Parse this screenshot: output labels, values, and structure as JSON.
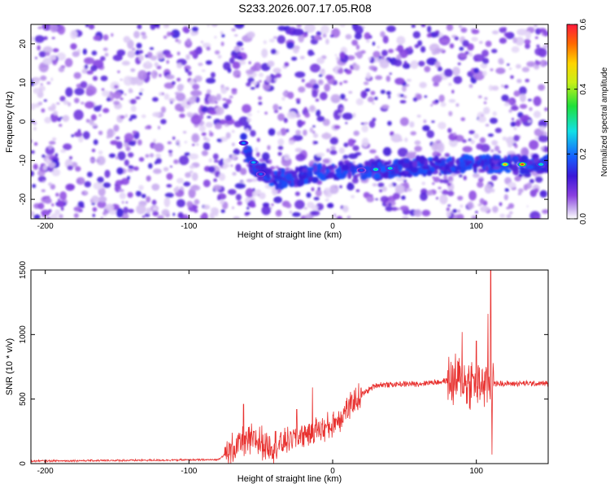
{
  "title": "S233.2026.007.17.05.R08",
  "chart_data": [
    {
      "type": "heatmap",
      "xlabel": "Height of straight line (km)",
      "ylabel": "Frequency (Hz)",
      "xlim": [
        -210,
        150
      ],
      "ylim": [
        -25,
        25
      ],
      "xticks": [
        -200,
        -100,
        0,
        100
      ],
      "yticks": [
        -20,
        -10,
        0,
        10,
        20
      ],
      "colorbar": {
        "label": "Normalized spectral amplitude",
        "range": [
          0.0,
          0.6
        ],
        "ticks": [
          "0.0",
          "0.2",
          "0.4",
          "0.6"
        ]
      },
      "signal_track": [
        {
          "x": -62,
          "freq": -5
        },
        {
          "x": -55,
          "freq": -12
        },
        {
          "x": -40,
          "freq": -15
        },
        {
          "x": -20,
          "freq": -14
        },
        {
          "x": 0,
          "freq": -12.5
        },
        {
          "x": 30,
          "freq": -12.3
        },
        {
          "x": 60,
          "freq": -11.5
        },
        {
          "x": 100,
          "freq": -11
        },
        {
          "x": 130,
          "freq": -11
        },
        {
          "x": 150,
          "freq": -11
        }
      ],
      "peaks": [
        {
          "x": -62,
          "freq": -5.5,
          "amp": 0.22
        },
        {
          "x": -55,
          "freq": -10.5,
          "amp": 0.25
        },
        {
          "x": -50,
          "freq": -13.5,
          "amp": 0.2
        },
        {
          "x": 30,
          "freq": -12.3,
          "amp": 0.32
        },
        {
          "x": 40,
          "freq": -12.0,
          "amp": 0.3
        },
        {
          "x": 20,
          "freq": -12.5,
          "amp": 0.18
        },
        {
          "x": 120,
          "freq": -11,
          "amp": 0.5
        },
        {
          "x": 132,
          "freq": -11,
          "amp": 0.58
        },
        {
          "x": 145,
          "freq": -11,
          "amp": 0.3
        }
      ]
    },
    {
      "type": "line",
      "xlabel": "Height of straight line (km)",
      "ylabel": "SNR (10 * v/v)",
      "xlim": [
        -210,
        150
      ],
      "ylim": [
        0,
        1500
      ],
      "xticks": [
        -200,
        -100,
        0,
        100
      ],
      "yticks": [
        0,
        500,
        1000,
        1500
      ],
      "line_color": "#e8312f",
      "series_profile": [
        {
          "x": -210,
          "y": 20
        },
        {
          "x": -80,
          "y": 30
        },
        {
          "x": -65,
          "y": 150
        },
        {
          "x": -55,
          "y": 180
        },
        {
          "x": -40,
          "y": 140
        },
        {
          "x": -20,
          "y": 230
        },
        {
          "x": 0,
          "y": 300
        },
        {
          "x": 20,
          "y": 530
        },
        {
          "x": 30,
          "y": 610
        },
        {
          "x": 60,
          "y": 620
        },
        {
          "x": 80,
          "y": 640
        },
        {
          "x": 110,
          "y": 620
        },
        {
          "x": 150,
          "y": 620
        }
      ],
      "spikes": [
        {
          "x": -62,
          "y": 460
        },
        {
          "x": -25,
          "y": 420
        },
        {
          "x": -14,
          "y": 590
        },
        {
          "x": 90,
          "y": 1020
        },
        {
          "x": 100,
          "y": 950
        },
        {
          "x": 108,
          "y": 1160
        },
        {
          "x": 110,
          "y": 1500
        },
        {
          "x": 111,
          "y": 70
        }
      ]
    }
  ]
}
